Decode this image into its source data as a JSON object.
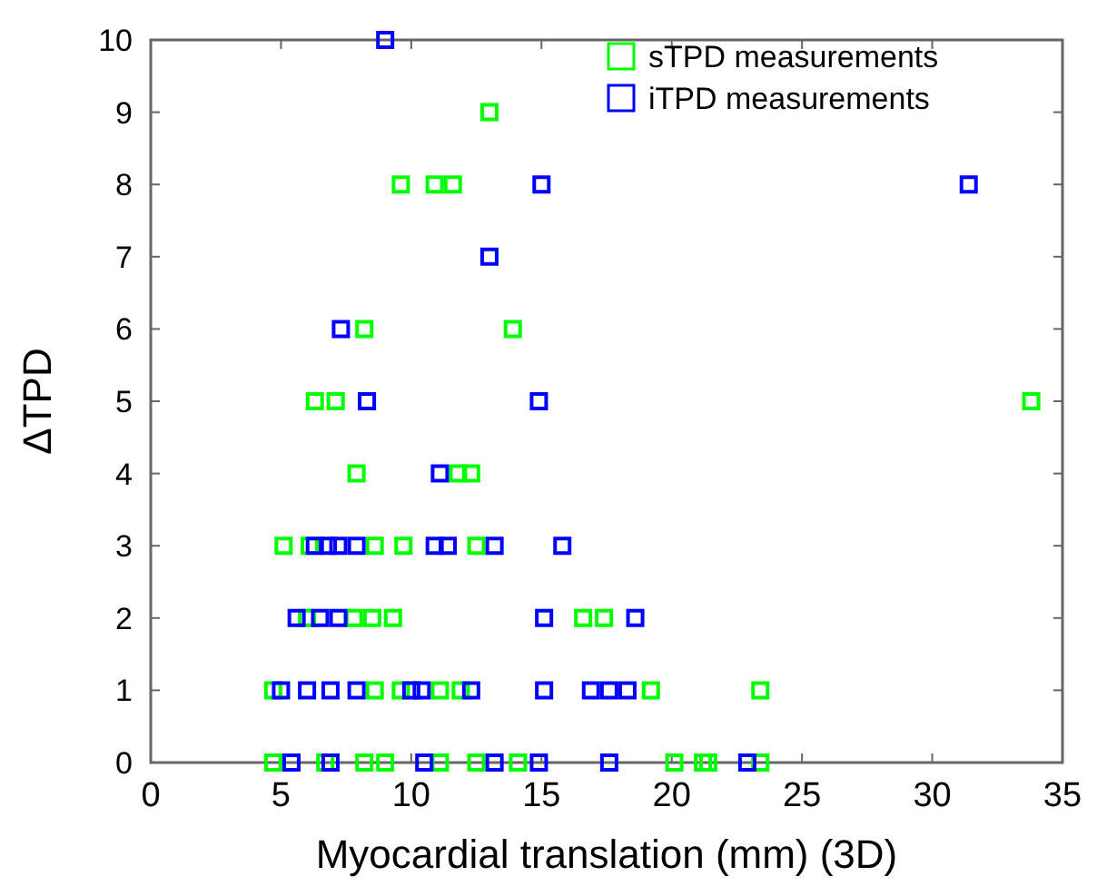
{
  "chart_data": {
    "type": "scatter",
    "xlabel": "Myocardial translation (mm) (3D)",
    "ylabel": "ΔTPD",
    "xlim": [
      0,
      35
    ],
    "ylim": [
      0,
      10
    ],
    "xticks": [
      0,
      5,
      10,
      15,
      20,
      25,
      30,
      35
    ],
    "yticks": [
      0,
      1,
      2,
      3,
      4,
      5,
      6,
      7,
      8,
      9,
      10
    ],
    "grid": false,
    "legend": "top right",
    "marker": "square",
    "series": [
      {
        "name": "sTPD measurements",
        "color": "#00ff00",
        "x": [
          13.0,
          9.6,
          10.9,
          11.6,
          8.2,
          13.9,
          6.3,
          7.1,
          33.8,
          7.9,
          11.8,
          12.3,
          5.1,
          6.1,
          8.6,
          9.7,
          12.5,
          6.0,
          7.8,
          8.5,
          9.3,
          16.6,
          17.4,
          4.7,
          8.6,
          9.6,
          11.1,
          11.9,
          19.2,
          23.4,
          4.7,
          6.7,
          8.2,
          9.0,
          11.1,
          12.5,
          14.1,
          20.1,
          21.2,
          21.4,
          23.4
        ],
        "values": [
          9,
          8,
          8,
          8,
          6,
          6,
          5,
          5,
          5,
          4,
          4,
          4,
          3,
          3,
          3,
          3,
          3,
          2,
          2,
          2,
          2,
          2,
          2,
          1,
          1,
          1,
          1,
          1,
          1,
          1,
          0,
          0,
          0,
          0,
          0,
          0,
          0,
          0,
          0,
          0,
          0
        ]
      },
      {
        "name": "iTPD measurements",
        "color": "#0000ff",
        "x": [
          9.0,
          15.0,
          31.4,
          13.0,
          7.3,
          8.3,
          14.9,
          11.1,
          6.3,
          6.8,
          7.2,
          7.9,
          10.9,
          11.4,
          13.2,
          15.8,
          5.6,
          6.5,
          7.2,
          15.1,
          18.6,
          5.0,
          6.0,
          6.9,
          7.9,
          10.0,
          10.4,
          12.3,
          15.1,
          16.9,
          17.6,
          18.3,
          5.4,
          6.9,
          10.5,
          13.2,
          14.9,
          17.6,
          22.9
        ],
        "values": [
          10,
          8,
          8,
          7,
          6,
          5,
          5,
          4,
          3,
          3,
          3,
          3,
          3,
          3,
          3,
          3,
          2,
          2,
          2,
          2,
          2,
          1,
          1,
          1,
          1,
          1,
          1,
          1,
          1,
          1,
          1,
          1,
          0,
          0,
          0,
          0,
          0,
          0,
          0
        ]
      }
    ]
  }
}
